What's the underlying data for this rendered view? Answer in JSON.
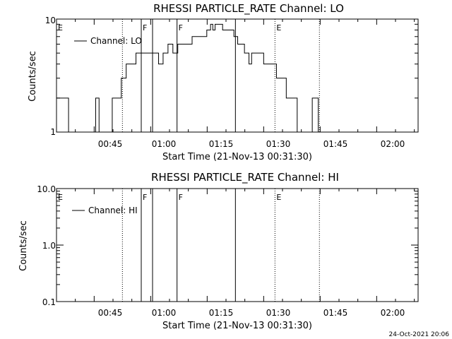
{
  "footer": {
    "timestamp": "24-Oct-2021 20:06"
  },
  "chart_data": [
    {
      "type": "line",
      "title": "RHESSI PARTICLE_RATE Channel: LO",
      "xlabel": "Start Time (21-Nov-13 00:31:30)",
      "ylabel": "Counts/sec",
      "yscale": "log",
      "ylim": [
        1,
        10
      ],
      "xlim_minutes": [
        35,
        131
      ],
      "ytick_labels": [
        "1",
        "10"
      ],
      "xtick_labels": [
        "00:45",
        "01:00",
        "01:15",
        "01:30",
        "01:45",
        "02:00"
      ],
      "legend": "Channel: LO",
      "vlines": [
        {
          "t": 52.5,
          "style": "dotted",
          "flag": ""
        },
        {
          "t": 57.5,
          "style": "solid",
          "flag": "F"
        },
        {
          "t": 60.5,
          "style": "solid",
          "flag": ""
        },
        {
          "t": 67.0,
          "style": "solid",
          "flag": "F"
        },
        {
          "t": 82.5,
          "style": "solid",
          "flag": ""
        },
        {
          "t": 93.0,
          "style": "dotted",
          "flag": "E"
        },
        {
          "t": 104.8,
          "style": "dotted",
          "flag": ""
        }
      ],
      "edge_flags": [
        {
          "t": 35,
          "flag": "E"
        }
      ],
      "series": [
        {
          "name": "Channel: LO",
          "x": [
            35.0,
            37.9,
            38.2,
            40.2,
            43.8,
            45.4,
            46.3,
            47.2,
            48.5,
            49.8,
            51.3,
            52.2,
            53.5,
            54.5,
            56.1,
            57.7,
            58.8,
            59.8,
            61.2,
            62.1,
            63.3,
            64.6,
            65.9,
            67.2,
            68.2,
            69.7,
            71.0,
            72.4,
            73.7,
            74.9,
            75.9,
            76.5,
            77.1,
            78.2,
            79.1,
            80.1,
            81.0,
            82.1,
            83.1,
            83.9,
            84.9,
            86.1,
            86.8,
            88.1,
            89.1,
            90.0,
            91.4,
            92.7,
            93.4,
            94.7,
            96.0,
            97.6,
            98.9,
            100.2,
            101.5,
            102.9,
            104.5
          ],
          "values": [
            2,
            2,
            1,
            1,
            1,
            2,
            1,
            1,
            1,
            2,
            2,
            3,
            4,
            4,
            5,
            5,
            5,
            5,
            5,
            4,
            5,
            6,
            5,
            6,
            6,
            6,
            7,
            7,
            7,
            8,
            9,
            8,
            9,
            9,
            8,
            8,
            8,
            7,
            6,
            6,
            5,
            4,
            5,
            5,
            5,
            4,
            4,
            4,
            3,
            3,
            2,
            2,
            1,
            1,
            1,
            2,
            1
          ]
        }
      ]
    },
    {
      "type": "line",
      "title": "RHESSI PARTICLE_RATE Channel: HI",
      "xlabel": "Start Time (21-Nov-13 00:31:30)",
      "ylabel": "Counts/sec",
      "yscale": "log",
      "ylim": [
        0.1,
        10
      ],
      "xlim_minutes": [
        35,
        131
      ],
      "ytick_labels": [
        "0.1",
        "1.0",
        "10.0"
      ],
      "xtick_labels": [
        "00:45",
        "01:00",
        "01:15",
        "01:30",
        "01:45",
        "02:00"
      ],
      "legend": "Channel: HI",
      "vlines": [
        {
          "t": 52.5,
          "style": "dotted",
          "flag": ""
        },
        {
          "t": 57.5,
          "style": "solid",
          "flag": "F"
        },
        {
          "t": 60.5,
          "style": "solid",
          "flag": ""
        },
        {
          "t": 67.0,
          "style": "solid",
          "flag": "F"
        },
        {
          "t": 82.5,
          "style": "solid",
          "flag": ""
        },
        {
          "t": 93.0,
          "style": "dotted",
          "flag": "E"
        },
        {
          "t": 104.8,
          "style": "dotted",
          "flag": ""
        }
      ],
      "edge_flags": [
        {
          "t": 35,
          "flag": "E"
        }
      ],
      "series": [
        {
          "name": "Channel: HI",
          "x": [],
          "values": []
        }
      ]
    }
  ]
}
